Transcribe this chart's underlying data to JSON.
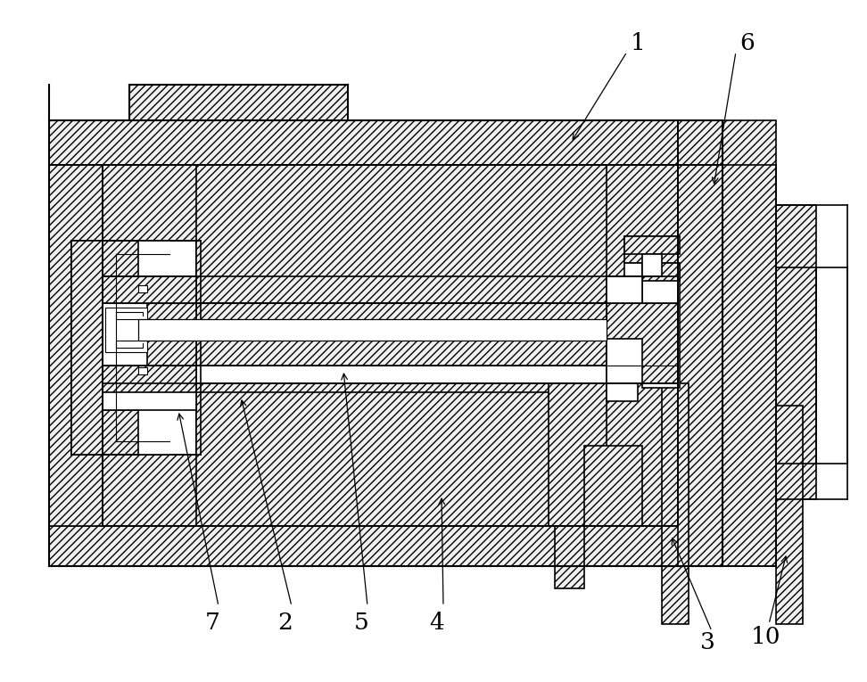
{
  "bg_color": "#ffffff",
  "line_color": "#000000",
  "lw": 1.0,
  "hatch": "////",
  "fig_w": 9.72,
  "fig_h": 7.65,
  "dpi": 100
}
